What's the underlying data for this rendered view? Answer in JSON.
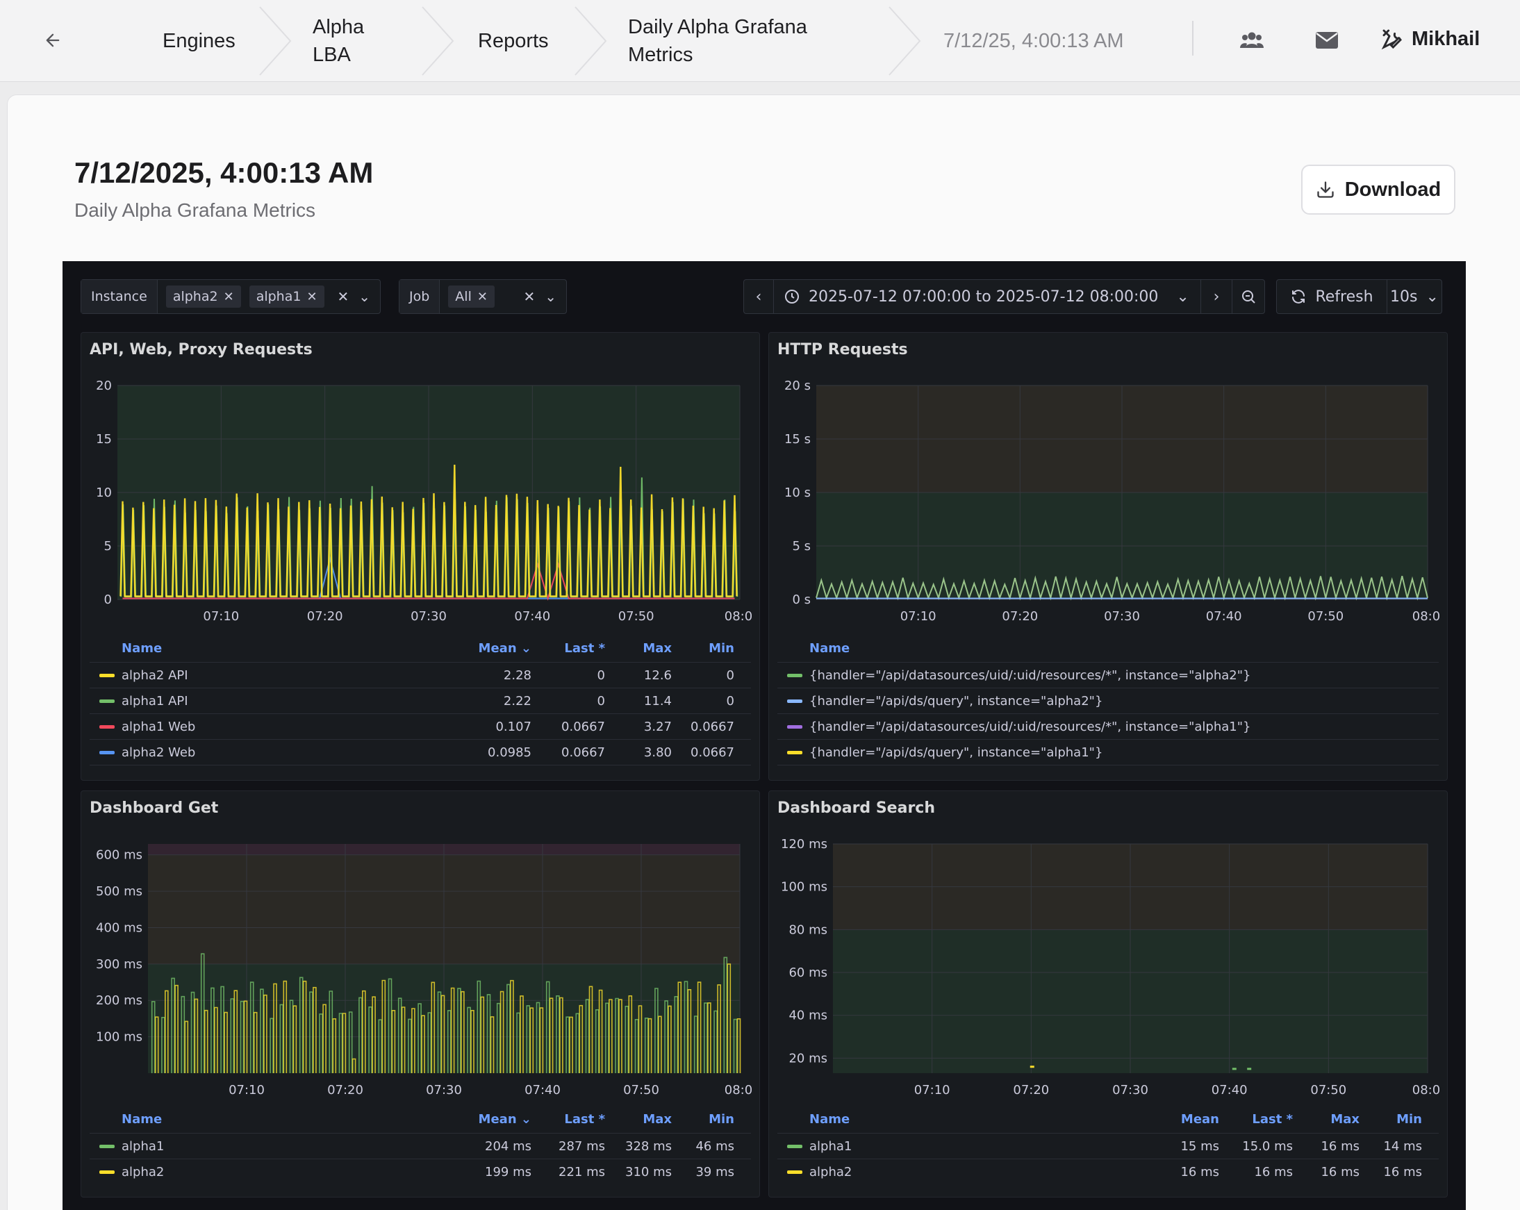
{
  "topbar": {
    "breadcrumbs": [
      "Engines",
      "Alpha LBA",
      "Reports",
      "Daily Alpha Grafana Metrics",
      "7/12/25, 4:00:13 AM"
    ],
    "user_name": "Mikhail"
  },
  "report": {
    "title": "7/12/2025, 4:00:13 AM",
    "subtitle": "Daily Alpha Grafana Metrics",
    "download_label": "Download"
  },
  "grafana": {
    "variables": [
      {
        "label": "Instance",
        "values": [
          "alpha2",
          "alpha1"
        ]
      },
      {
        "label": "Job",
        "values": [
          "All"
        ]
      }
    ],
    "time_range": "2025-07-12 07:00:00 to 2025-07-12 08:00:00",
    "refresh_label": "Refresh",
    "refresh_interval": "10s",
    "panels": [
      {
        "title": "API, Web, Proxy Requests",
        "legend_headers": [
          "Name",
          "Mean",
          "Last *",
          "Max",
          "Min"
        ],
        "legend": [
          {
            "name": "alpha2 API",
            "mean": "2.28",
            "last": "0",
            "max": "12.6",
            "min": "0",
            "color": "#fade2a"
          },
          {
            "name": "alpha1 API",
            "mean": "2.22",
            "last": "0",
            "max": "11.4",
            "min": "0",
            "color": "#73bf69"
          },
          {
            "name": "alpha1 Web",
            "mean": "0.107",
            "last": "0.0667",
            "max": "3.27",
            "min": "0.0667",
            "color": "#f2495c"
          },
          {
            "name": "alpha2 Web",
            "mean": "0.0985",
            "last": "0.0667",
            "max": "3.80",
            "min": "0.0667",
            "color": "#5794f2"
          }
        ]
      },
      {
        "title": "HTTP Requests",
        "legend_headers": [
          "Name"
        ],
        "legend": [
          {
            "name": "{handler=\"/api/datasources/uid/:uid/resources/*\", instance=\"alpha2\"}",
            "color": "#73bf69"
          },
          {
            "name": "{handler=\"/api/ds/query\", instance=\"alpha2\"}",
            "color": "#8ab8ff"
          },
          {
            "name": "{handler=\"/api/datasources/uid/:uid/resources/*\", instance=\"alpha1\"}",
            "color": "#a16ee0"
          },
          {
            "name": "{handler=\"/api/ds/query\", instance=\"alpha1\"}",
            "color": "#fade2a"
          }
        ]
      },
      {
        "title": "Dashboard Get",
        "legend_headers": [
          "Name",
          "Mean",
          "Last *",
          "Max",
          "Min"
        ],
        "legend": [
          {
            "name": "alpha1",
            "mean": "204 ms",
            "last": "287 ms",
            "max": "328 ms",
            "min": "46 ms",
            "color": "#73bf69"
          },
          {
            "name": "alpha2",
            "mean": "199 ms",
            "last": "221 ms",
            "max": "310 ms",
            "min": "39 ms",
            "color": "#fade2a"
          }
        ]
      },
      {
        "title": "Dashboard Search",
        "legend_headers": [
          "Name",
          "Mean",
          "Last *",
          "Max",
          "Min"
        ],
        "legend": [
          {
            "name": "alpha1",
            "mean": "15 ms",
            "last": "15.0 ms",
            "max": "16 ms",
            "min": "14 ms",
            "color": "#73bf69"
          },
          {
            "name": "alpha2",
            "mean": "16 ms",
            "last": "16 ms",
            "max": "16 ms",
            "min": "16 ms",
            "color": "#fade2a"
          }
        ]
      }
    ]
  },
  "chart_data": [
    {
      "type": "line",
      "title": "API, Web, Proxy Requests",
      "x_ticks": [
        "07:10",
        "07:20",
        "07:30",
        "07:40",
        "07:50",
        "08:0"
      ],
      "y_ticks": [
        "0",
        "5",
        "10",
        "15",
        "20"
      ],
      "ylim": [
        0,
        20
      ],
      "series": [
        {
          "name": "alpha2 API",
          "max": 12.6
        },
        {
          "name": "alpha1 API",
          "max": 11.4
        },
        {
          "name": "alpha1 Web",
          "max": 3.27
        },
        {
          "name": "alpha2 Web",
          "max": 3.8
        }
      ]
    },
    {
      "type": "line",
      "title": "HTTP Requests",
      "x_ticks": [
        "07:10",
        "07:20",
        "07:30",
        "07:40",
        "07:50",
        "08:0"
      ],
      "y_ticks": [
        "0 s",
        "5 s",
        "10 s",
        "15 s",
        "20 s"
      ],
      "ylim": [
        0,
        20
      ]
    },
    {
      "type": "line",
      "title": "Dashboard Get",
      "x_ticks": [
        "07:10",
        "07:20",
        "07:30",
        "07:40",
        "07:50",
        "08:0"
      ],
      "y_ticks": [
        "100 ms",
        "200 ms",
        "300 ms",
        "400 ms",
        "500 ms",
        "600 ms"
      ],
      "ylim": [
        0,
        630
      ],
      "series": [
        {
          "name": "alpha1",
          "mean": 204,
          "max": 328,
          "min": 46
        },
        {
          "name": "alpha2",
          "mean": 199,
          "max": 310,
          "min": 39
        }
      ]
    },
    {
      "type": "line",
      "title": "Dashboard Search",
      "x_ticks": [
        "07:10",
        "07:20",
        "07:30",
        "07:40",
        "07:50",
        "08:0"
      ],
      "y_ticks": [
        "20 ms",
        "40 ms",
        "60 ms",
        "80 ms",
        "100 ms",
        "120 ms"
      ],
      "ylim": [
        13,
        120
      ],
      "series": [
        {
          "name": "alpha1",
          "mean": 15,
          "max": 16,
          "min": 14
        },
        {
          "name": "alpha2",
          "mean": 16,
          "max": 16,
          "min": 16
        }
      ]
    }
  ]
}
